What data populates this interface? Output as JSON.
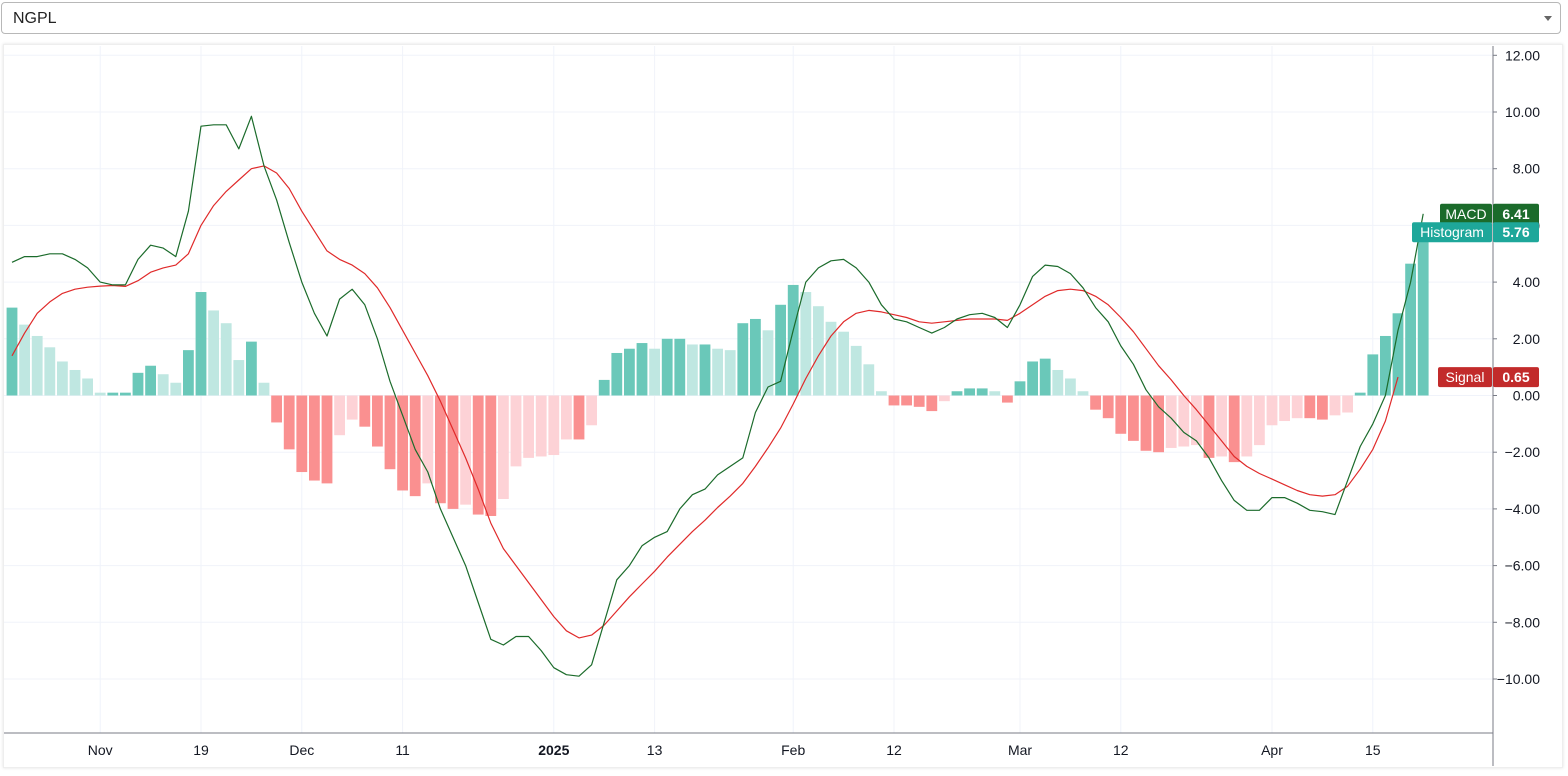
{
  "selector": {
    "value": "NGPL",
    "icon": "chevron-down-icon"
  },
  "chart_data": {
    "type": "line",
    "indicator": "MACD",
    "ylim": [
      -12,
      12
    ],
    "y_ticks": [
      "12.00",
      "10.00",
      "8.00",
      "6.00",
      "4.00",
      "2.00",
      "0.00",
      "−2.00",
      "−4.00",
      "−6.00",
      "−8.00",
      "−10.00"
    ],
    "y_tick_values": [
      12,
      10,
      8,
      6,
      4,
      2,
      0,
      -2,
      -4,
      -6,
      -8,
      -10
    ],
    "x_ticks": [
      {
        "label": "Nov",
        "index": 7,
        "bold": false
      },
      {
        "label": "19",
        "index": 15,
        "bold": false
      },
      {
        "label": "Dec",
        "index": 23,
        "bold": false
      },
      {
        "label": "11",
        "index": 31,
        "bold": false
      },
      {
        "label": "2025",
        "index": 43,
        "bold": true
      },
      {
        "label": "13",
        "index": 51,
        "bold": false
      },
      {
        "label": "Feb",
        "index": 62,
        "bold": false
      },
      {
        "label": "12",
        "index": 70,
        "bold": false
      },
      {
        "label": "Mar",
        "index": 80,
        "bold": false
      },
      {
        "label": "12",
        "index": 88,
        "bold": false
      },
      {
        "label": "Apr",
        "index": 100,
        "bold": false
      },
      {
        "label": "15",
        "index": 108,
        "bold": false
      }
    ],
    "colors": {
      "macd": "#1b6b2b",
      "signal": "#e02a2a",
      "hist_pos_strong": "#6ac8b9",
      "hist_pos_weak": "#bfe7e1",
      "hist_neg_strong": "#fa9090",
      "hist_neg_weak": "#fdd2d6",
      "grid": "#f0f3fa"
    },
    "series": [
      {
        "name": "MACD",
        "values": [
          4.7,
          4.9,
          4.9,
          5.0,
          5.0,
          4.8,
          4.5,
          4.0,
          3.9,
          3.9,
          4.8,
          5.3,
          5.2,
          4.9,
          6.5,
          9.5,
          9.55,
          9.55,
          8.7,
          9.85,
          8.1,
          6.9,
          5.4,
          4.0,
          2.9,
          2.1,
          3.4,
          3.75,
          3.2,
          2.0,
          0.5,
          -0.7,
          -1.9,
          -2.7,
          -4.0,
          -5.0,
          -6.0,
          -7.3,
          -8.6,
          -8.8,
          -8.5,
          -8.5,
          -9.0,
          -9.6,
          -9.85,
          -9.9,
          -9.5,
          -8.0,
          -6.5,
          -6.0,
          -5.3,
          -5.0,
          -4.8,
          -4.0,
          -3.5,
          -3.3,
          -2.8,
          -2.5,
          -2.2,
          -0.6,
          0.3,
          0.5,
          2.3,
          4.0,
          4.5,
          4.75,
          4.8,
          4.5,
          4.0,
          3.2,
          2.7,
          2.6,
          2.4,
          2.2,
          2.4,
          2.7,
          2.85,
          2.9,
          2.75,
          2.4,
          3.2,
          4.2,
          4.6,
          4.55,
          4.3,
          3.8,
          3.1,
          2.6,
          1.75,
          1.1,
          0.2,
          -0.4,
          -0.8,
          -1.3,
          -1.6,
          -2.2,
          -3.0,
          -3.7,
          -4.05,
          -4.05,
          -3.6,
          -3.6,
          -3.8,
          -4.05,
          -4.1,
          -4.2,
          -3.0,
          -1.8,
          -1.0,
          0.0,
          2.3,
          4.0,
          6.41
        ]
      },
      {
        "name": "Signal",
        "values": [
          1.4,
          2.2,
          2.9,
          3.3,
          3.6,
          3.75,
          3.82,
          3.86,
          3.88,
          3.85,
          4.05,
          4.35,
          4.5,
          4.6,
          5.0,
          6.0,
          6.7,
          7.2,
          7.6,
          8.0,
          8.1,
          7.85,
          7.3,
          6.5,
          5.8,
          5.1,
          4.8,
          4.6,
          4.3,
          3.8,
          3.1,
          2.3,
          1.5,
          0.7,
          -0.2,
          -1.2,
          -2.2,
          -3.3,
          -4.5,
          -5.4,
          -6.0,
          -6.6,
          -7.2,
          -7.8,
          -8.3,
          -8.55,
          -8.45,
          -8.1,
          -7.6,
          -7.1,
          -6.65,
          -6.2,
          -5.7,
          -5.25,
          -4.8,
          -4.4,
          -3.95,
          -3.55,
          -3.1,
          -2.5,
          -1.85,
          -1.15,
          -0.3,
          0.6,
          1.4,
          2.1,
          2.6,
          2.9,
          3.0,
          2.95,
          2.85,
          2.75,
          2.6,
          2.55,
          2.6,
          2.65,
          2.7,
          2.7,
          2.7,
          2.65,
          2.9,
          3.2,
          3.5,
          3.7,
          3.75,
          3.7,
          3.5,
          3.2,
          2.75,
          2.25,
          1.65,
          1.05,
          0.55,
          0.0,
          -0.5,
          -1.05,
          -1.6,
          -2.15,
          -2.5,
          -2.75,
          -2.95,
          -3.15,
          -3.35,
          -3.5,
          -3.55,
          -3.5,
          -3.2,
          -2.6,
          -1.9,
          -0.9,
          0.65
        ]
      },
      {
        "name": "Histogram",
        "values": [
          3.1,
          2.5,
          2.1,
          1.7,
          1.2,
          0.9,
          0.6,
          0.1,
          0.1,
          0.1,
          0.8,
          1.05,
          0.75,
          0.45,
          1.6,
          3.65,
          3.0,
          2.55,
          1.25,
          1.9,
          0.45,
          -0.95,
          -1.9,
          -2.7,
          -3.0,
          -3.1,
          -1.4,
          -0.85,
          -1.1,
          -1.8,
          -2.6,
          -3.35,
          -3.55,
          -3.1,
          -3.8,
          -4.0,
          -3.85,
          -4.2,
          -4.25,
          -3.65,
          -2.5,
          -2.2,
          -2.15,
          -2.1,
          -1.55,
          -1.55,
          -1.05,
          0.55,
          1.5,
          1.65,
          1.85,
          1.65,
          2.0,
          2.0,
          1.8,
          1.8,
          1.65,
          1.6,
          2.55,
          2.7,
          2.3,
          3.2,
          3.9,
          3.65,
          3.15,
          2.6,
          2.25,
          1.75,
          1.1,
          0.15,
          -0.35,
          -0.35,
          -0.4,
          -0.55,
          -0.2,
          0.15,
          0.25,
          0.25,
          0.15,
          -0.25,
          0.5,
          1.2,
          1.3,
          0.9,
          0.6,
          0.15,
          -0.5,
          -0.8,
          -1.35,
          -1.6,
          -1.95,
          -2.0,
          -1.85,
          -1.8,
          -1.75,
          -2.2,
          -2.15,
          -2.35,
          -2.15,
          -1.75,
          -1.05,
          -0.9,
          -0.8,
          -0.8,
          -0.85,
          -0.7,
          -0.6,
          0.1,
          1.45,
          2.1,
          2.9,
          4.65,
          5.76
        ]
      }
    ],
    "last_value_labels": [
      {
        "name": "MACD",
        "value": "6.41",
        "color": "#1b6b2b"
      },
      {
        "name": "Histogram",
        "value": "5.76",
        "color": "#1ea79a"
      },
      {
        "name": "Signal",
        "value": "0.65",
        "color": "#c22b2b"
      }
    ]
  }
}
